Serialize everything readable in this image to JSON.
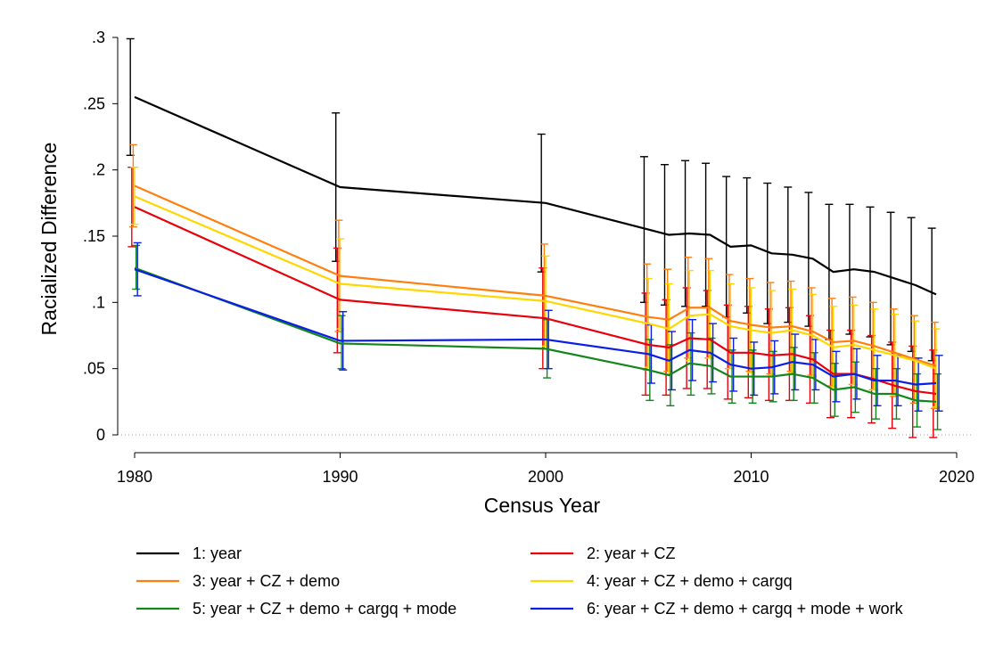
{
  "chart_data": {
    "type": "line",
    "xlabel": "Census Year",
    "ylabel": "Racialized Difference",
    "xlim": [
      1980,
      2020
    ],
    "ylim": [
      0,
      0.3
    ],
    "x_ticks": [
      1980,
      1990,
      2000,
      2010,
      2020
    ],
    "y_ticks": [
      0,
      0.05,
      0.1,
      0.15,
      0.2,
      0.25,
      0.3
    ],
    "y_tick_labels": [
      "0",
      ".05",
      ".1",
      ".15",
      ".2",
      ".25",
      ".3"
    ],
    "error_bars": "confidence intervals",
    "zero_reference_line": "dotted",
    "legend_position": "bottom",
    "x": [
      1980,
      1990,
      2000,
      2005,
      2006,
      2007,
      2008,
      2009,
      2010,
      2011,
      2012,
      2013,
      2014,
      2015,
      2016,
      2017,
      2018,
      2019
    ],
    "series": [
      {
        "name": "1: year",
        "color": "#000000",
        "values": [
          0.255,
          0.187,
          0.175,
          0.155,
          0.151,
          0.152,
          0.151,
          0.142,
          0.143,
          0.137,
          0.136,
          0.133,
          0.123,
          0.125,
          0.123,
          0.118,
          0.113,
          0.106
        ],
        "lower": [
          0.211,
          0.131,
          0.123,
          0.1,
          0.098,
          0.097,
          0.097,
          0.089,
          0.092,
          0.084,
          0.085,
          0.082,
          0.072,
          0.076,
          0.074,
          0.068,
          0.063,
          0.056
        ],
        "upper": [
          0.299,
          0.243,
          0.227,
          0.21,
          0.204,
          0.207,
          0.205,
          0.195,
          0.194,
          0.19,
          0.187,
          0.183,
          0.174,
          0.174,
          0.172,
          0.168,
          0.164,
          0.156
        ]
      },
      {
        "name": "2: year + CZ",
        "color": "#e8000b",
        "values": [
          0.172,
          0.102,
          0.088,
          0.068,
          0.066,
          0.073,
          0.072,
          0.062,
          0.062,
          0.06,
          0.061,
          0.057,
          0.046,
          0.046,
          0.042,
          0.037,
          0.033,
          0.031
        ],
        "lower": [
          0.142,
          0.062,
          0.05,
          0.03,
          0.03,
          0.035,
          0.035,
          0.027,
          0.028,
          0.026,
          0.026,
          0.024,
          0.013,
          0.013,
          0.009,
          0.005,
          -0.002,
          -0.002
        ],
        "upper": [
          0.202,
          0.141,
          0.126,
          0.107,
          0.102,
          0.111,
          0.109,
          0.098,
          0.097,
          0.095,
          0.096,
          0.09,
          0.079,
          0.079,
          0.075,
          0.07,
          0.067,
          0.064
        ]
      },
      {
        "name": "3: year + CZ + demo",
        "color": "#ff7f0e",
        "values": [
          0.188,
          0.12,
          0.105,
          0.089,
          0.087,
          0.096,
          0.096,
          0.086,
          0.083,
          0.081,
          0.082,
          0.078,
          0.07,
          0.071,
          0.067,
          0.062,
          0.057,
          0.052
        ],
        "lower": [
          0.157,
          0.078,
          0.065,
          0.049,
          0.048,
          0.058,
          0.058,
          0.05,
          0.048,
          0.046,
          0.048,
          0.045,
          0.037,
          0.038,
          0.034,
          0.029,
          0.024,
          0.02
        ],
        "upper": [
          0.219,
          0.162,
          0.144,
          0.129,
          0.125,
          0.134,
          0.133,
          0.121,
          0.118,
          0.115,
          0.116,
          0.111,
          0.103,
          0.104,
          0.1,
          0.095,
          0.09,
          0.085
        ]
      },
      {
        "name": "4: year + CZ + demo + cargq",
        "color": "#ffd700",
        "values": [
          0.18,
          0.114,
          0.101,
          0.084,
          0.08,
          0.09,
          0.091,
          0.082,
          0.079,
          0.077,
          0.079,
          0.075,
          0.066,
          0.068,
          0.064,
          0.06,
          0.056,
          0.05
        ],
        "lower": [
          0.159,
          0.08,
          0.067,
          0.051,
          0.046,
          0.056,
          0.058,
          0.05,
          0.047,
          0.045,
          0.047,
          0.044,
          0.036,
          0.038,
          0.034,
          0.03,
          0.026,
          0.021
        ],
        "upper": [
          0.202,
          0.148,
          0.135,
          0.118,
          0.114,
          0.124,
          0.124,
          0.114,
          0.111,
          0.109,
          0.11,
          0.106,
          0.097,
          0.098,
          0.095,
          0.091,
          0.086,
          0.08
        ]
      },
      {
        "name": "5: year + CZ + demo + cargq + mode",
        "color": "#12861a",
        "values": [
          0.126,
          0.069,
          0.065,
          0.049,
          0.045,
          0.054,
          0.052,
          0.044,
          0.044,
          0.044,
          0.046,
          0.043,
          0.034,
          0.036,
          0.031,
          0.031,
          0.026,
          0.025
        ],
        "lower": [
          0.11,
          0.05,
          0.043,
          0.026,
          0.022,
          0.03,
          0.031,
          0.024,
          0.024,
          0.025,
          0.026,
          0.024,
          0.014,
          0.017,
          0.012,
          0.012,
          0.006,
          0.004
        ],
        "upper": [
          0.143,
          0.09,
          0.087,
          0.072,
          0.068,
          0.077,
          0.073,
          0.064,
          0.064,
          0.063,
          0.066,
          0.062,
          0.054,
          0.055,
          0.05,
          0.05,
          0.046,
          0.046
        ]
      },
      {
        "name": "6: year + CZ + demo + cargq + mode + work",
        "color": "#0a1ee6",
        "values": [
          0.125,
          0.071,
          0.072,
          0.061,
          0.056,
          0.064,
          0.062,
          0.053,
          0.05,
          0.051,
          0.055,
          0.053,
          0.044,
          0.046,
          0.041,
          0.041,
          0.038,
          0.039
        ],
        "lower": [
          0.105,
          0.049,
          0.05,
          0.039,
          0.034,
          0.041,
          0.04,
          0.033,
          0.03,
          0.031,
          0.034,
          0.034,
          0.025,
          0.027,
          0.022,
          0.022,
          0.018,
          0.018
        ],
        "upper": [
          0.145,
          0.093,
          0.094,
          0.083,
          0.078,
          0.087,
          0.084,
          0.073,
          0.07,
          0.071,
          0.076,
          0.072,
          0.063,
          0.065,
          0.06,
          0.06,
          0.058,
          0.06
        ]
      }
    ]
  }
}
